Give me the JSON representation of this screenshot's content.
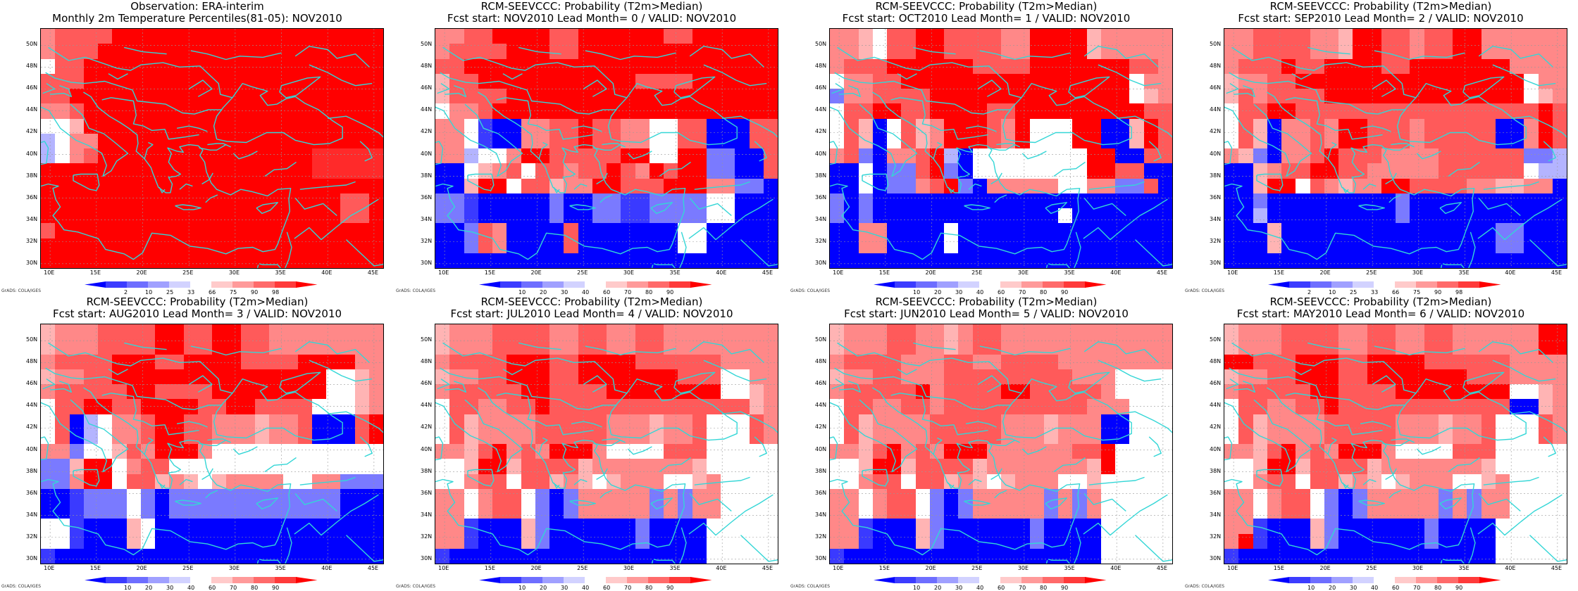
{
  "lat_labels": [
    "50N",
    "48N",
    "46N",
    "44N",
    "42N",
    "40N",
    "38N",
    "36N",
    "34N",
    "32N",
    "30N"
  ],
  "lon_labels": [
    "10E",
    "15E",
    "20E",
    "25E",
    "30E",
    "35E",
    "40E",
    "45E"
  ],
  "grads_label": "GrADS: COLA/IGES",
  "colors": {
    "coast": "#33d6d6",
    "grid": "#999999",
    "palette": [
      "#0000ff",
      "#3c3cff",
      "#6e6eff",
      "#a0a0ff",
      "#d2d2ff",
      "#ffffff",
      "#ffcaca",
      "#ff9a9a",
      "#ff6a6a",
      "#ff3a3a",
      "#ff0000"
    ]
  },
  "cmap": {
    "B": "#0000ff",
    "b": "#3a3aff",
    "c": "#7a7aff",
    "l": "#b4b4ff",
    "W": "#ffffff",
    "p": "#ffb4b4",
    "q": "#ff8888",
    "m": "#ff5a5a",
    "R": "#ff2a2a",
    "X": "#ff0000"
  },
  "panels": [
    {
      "title_line1": "Observation: ERA-interim",
      "title_line2": "Monthly 2m Temperature Percentiles(81-05): NOV2010",
      "colorbar_ticks": [
        "2",
        "10",
        "25",
        "33",
        "66",
        "75",
        "90",
        "98"
      ],
      "grid": [
        "qmmmmXXXXXXXXXXXXXXXXXXX",
        "qmmmXXXXXXXXXXXXXXXXXXXX",
        "WmmXXXXXXXXXXXXXXXXXXXXX",
        "mmmXXXXXXXXXXXXXXXXXXXXX",
        "mmXXXXXXXXXXXXXXXXXXXXXX",
        "qqmXXXXXXXXXXXXXXXXXXXXX",
        "WWpXXXXXXXXXXXXXXXXXXXXX",
        "lWqqXXXXXXXXXXXXXXXXXXXX",
        "lWqmXXXXXXXXXXXXXXXRRRRR",
        "XXXXXXXXXXXXXXXXXXXRRRRR",
        "XXXXXXXXXXXXXXXXXXXXXXXX",
        "XXXXXXXXXXXXXXXXXXXXXmmX",
        "XXXXXXXXXXXXXXXXXXXXXmmX",
        "mXXXXXXXXXXXXXXXXXXXXXXX",
        "XXXXXXXXXXXXXXXXXXXXXXXX",
        "XXXXXXXXXXXXXXXXXXXXXXXX"
      ]
    },
    {
      "title_line1": "RCM-SEEVCCC: Probability (T2m>Median)",
      "title_line2": "Fcst start: NOV2010   Lead Month= 0 / VALID: NOV2010",
      "colorbar_ticks": [
        "10",
        "20",
        "30",
        "40",
        "60",
        "70",
        "80",
        "90"
      ],
      "grid": [
        "qqmmXXXXmmXXXXXXmmXXXXXX",
        "qmmmmXXXmmXXXXXXXXXXXXXX",
        "mmXXXXXXXXXXXXXXXXXXXXXX",
        "pmmXXXXXXXXXXXmmmmXXXXXX",
        "pmmmmXXXXXXXXXXXXXXXXXXX",
        "WqqmXXXXXXXXXXXXXXXXXXXX",
        "qqWbBBqqmmXmmqqWWmmBBBmm",
        "qqWbBBqqmmXmmqqWWmmBBBmm",
        "qqlWWqXXmmmmmXXWWXXccBBm",
        "BBWpqmWmmqmmXmqXmXXccBBm",
        "BBpXXWmmpqqXXmmmXXXqqccB",
        "ccbBBBBBcBBccbbccccWWBBB",
        "ccbBBBBBcBBccbbccccWWBBB",
        "BBcmqBBBBmBBBBBBBWWBBBBB",
        "BBcmqBBBBmBBBBBBBWWBBBBB",
        "BBBBBBBBBBBBBBBBBBBBBBBB"
      ]
    },
    {
      "title_line1": "RCM-SEEVCCC: Probability (T2m>Median)",
      "title_line2": "Fcst start: OCT2010   Lead Month= 1 / VALID: NOV2010",
      "colorbar_ticks": [
        "10",
        "20",
        "30",
        "40",
        "60",
        "70",
        "80",
        "90"
      ],
      "grid": [
        "qqpWmmXXmmmmqqXXXXpqqqqq",
        "qqpWmmXXmmmmqqXXXXpqqqqq",
        "qmmmXXXXXXmmmmXXXXXXXmmq",
        "WqqmmXXXXXXXXXXXXXXXXWqq",
        "cqqmmmmXXXXXXXXXXXXXXWpq",
        "WmmXXmmXXXXmmXXXXXXXXXmm",
        "WmpBWmpqXXXmqXWWWXXBBpXm",
        "WmpBWmpqXXXmqXWWWXXBBpXm",
        "qmcBqqmXlBWWWWWWWWXXBBmm",
        "BBWBccmXcBWWWWWWWWXXmmBB",
        "BBWBccqmXcBqqqqqWWqqccmB",
        "cBcBBBBBBBBBBBBBBBBBBBBB",
        "cBcBBBBBBBBBBBBBWBBBBBBB",
        "BBqqBBBBWBBBBBBBBBBBBBBB",
        "BBqqBBBBWBBBBBBBBBBBBBBB",
        "BBBBBBBBBBBBBBBBBBBBBBBB"
      ]
    },
    {
      "title_line1": "RCM-SEEVCCC: Probability (T2m>Median)",
      "title_line2": "Fcst start: SEP2010   Lead Month= 2 / VALID: NOV2010",
      "colorbar_ticks": [
        "2",
        "10",
        "25",
        "33",
        "66",
        "75",
        "90",
        "98"
      ],
      "grid": [
        "qqmmmmqqpXXmmqmmXXqqqqqq",
        "qqmmmmqqpXXmmqmmXXqqqqqq",
        "qmmmXmmXXXXmmXXXXXXXqqqq",
        "pqqmmXXXXXXXXXXXXXXXXWqq",
        "pmqmmmmXXXXXXXXXXXXXXWpq",
        "WmmXXmmmmmmmmmmmmmmmmmXm",
        "WmpBqqmqXXmmmqmmmmmBBqXm",
        "WmpBqqmqXXmmmqmmmmmBBqXm",
        "qpcBqqmXmmmqqqqmmmmmmccl",
        "BBpqmmXXmmqqqqqmmmmmmWll",
        "BBpXXWmqpqqXXmmmmqqppqqB",
        "BBcBBBBBBBBBcBBBBBBBBBBB",
        "BBlBBBBBBBBBcBBBBBBBBBBB",
        "BBBpBBBBBBBBBBBBBBBccBBB",
        "BBBpBBBBBBBBBBBBBBBccBBB",
        "BBBBBBBBBBBBBBBBBBBBBBBB"
      ]
    },
    {
      "title_line1": "RCM-SEEVCCC: Probability (T2m>Median)",
      "title_line2": "Fcst start: AUG2010   Lead Month= 3 / VALID: NOV2010",
      "colorbar_ticks": [
        "10",
        "20",
        "30",
        "40",
        "60",
        "70",
        "80",
        "90"
      ],
      "grid": [
        "pqqqmmmmXXmmXXmmqqqqqqqq",
        "pqqqmmmmXXmmXXmmqqqqqqqq",
        "qmmmmXXXmmXXXXmmmmXXXXqq",
        "pqqmmXXXXXXXXXXXXXXXWWpq",
        "qmmmmmXXmmmmXXXXXXXXWWpq",
        "WmmXXmmXXXXmmXXmmmmWWWpq",
        "WmBlWqqmXXmmqqqpqqmBBBmX",
        "WmBlWqqmXXmmqqqpqqmBBBmX",
        "qqcWWpmqXXXqWWWWWWWWWWWW",
        "ccpXXWqmmWWWWWWWWWWWWWWW",
        "ccqXXWmmpqpWpqqqqWWqqccc",
        "BBbcccWcBccccccccccccBBB",
        "BBbcccWcBccccccccccccBBB",
        "WWbBBBpWBBBBBBBBBBBBBBBB",
        "WWbBBBpWBBBBBBBBBBBBBBBB",
        "bBBBBBBBBBBBBBBBBBBBBBBB"
      ]
    },
    {
      "title_line1": "RCM-SEEVCCC: Probability (T2m>Median)",
      "title_line2": "Fcst start: JUL2010   Lead Month= 4 / VALID: NOV2010",
      "colorbar_ticks": [
        "10",
        "20",
        "30",
        "40",
        "60",
        "70",
        "80",
        "90"
      ],
      "grid": [
        "pqqqmmmmqqmmqqmmqqqqqqqq",
        "pqqqmmmmqqmmqqmmqqqqqqqq",
        "qmmmmXXXmmXXXXmmmmmmqqqq",
        "pqqmmXXXmmXXXXXXXmmmWWqq",
        "qmmmmmXXmmmmXXXXXXXXWWpq",
        "WmmqqmmXmmmmmmmmmmmmmmpq",
        "WmpqqqqmmmmmqqqpqqmWWWmq",
        "WmpqqqqmmmmmqqqpqqmWWWmq",
        "qqpmXqmqXXXqWWWWmmmWWWWW",
        "WWpXXpmmmmpqqqqqqqpWWWWW",
        "WWqmmWmmpqpWpqqqWWpqWWWW",
        "qqWqmmWcBcqqqqqcqcqqWWWW",
        "qqWqmmWcBcqqqqqcqcqqWWWW",
        "qqbBBBpcBBBBBBcBBBBWWWWW",
        "qqbBBBpcBBBBBBcBBBBWWWWW",
        "bBBBBBBBBBBBBBBBBBBWWWWW"
      ]
    },
    {
      "title_line1": "RCM-SEEVCCC: Probability (T2m>Median)",
      "title_line2": "Fcst start: JUN2010   Lead Month= 5 / VALID: NOV2010",
      "colorbar_ticks": [
        "10",
        "20",
        "30",
        "40",
        "60",
        "70",
        "80",
        "90"
      ],
      "grid": [
        "pqqqmmqqpqmmqqqqqqqqqqqq",
        "pqqqmmqqpqmmqqqqqqqqqqqq",
        "qmmmmqqqmmqqmmmmqqqqqqqq",
        "pqqmmqqqmmmmmmmmmqqqWWWW",
        "qmmmmmXqmmmmXXmmmmmqWWWW",
        "WmmqqmmqmmmmmmmmmmqqqWWW",
        "WmpqqqqmmmmmqqqpqqqBBWWW",
        "WmpqqqqmmmmmqqqpqqqBBWWW",
        "qqpmXqmqXXXqqqqqqmmXWWWW",
        "WWpXXpmmmmpqqqqqqqpXWWWW",
        "WWqmmWmmpqpWpqqqWWpWWWWW",
        "qqWqmmWcBcqqqqqcqcqWWWWW",
        "qqWqmmWcBcqqqqqcqcqWWWWW",
        "qqbBBBpcBBBBBBcBBBBWWWWW",
        "qqbBBBpcBBBBBBcBBBBWWWWW",
        "bBBBBBBBBBBBBBBBBBBWWWWW"
      ]
    },
    {
      "title_line1": "RCM-SEEVCCC: Probability (T2m>Median)",
      "title_line2": "Fcst start: MAY2010   Lead Month= 6 / VALID: NOV2010",
      "colorbar_ticks": [
        "10",
        "20",
        "30",
        "40",
        "60",
        "70",
        "80",
        "90"
      ],
      "grid": [
        "pqqqmmmmqqmmqqmmqqqqqqXX",
        "pqqqmmmmqqmmqqmmqqqqqqXX",
        "XXmmmXXXmmXXXXmmmmmmqqqq",
        "pqqmmXXXmmXXXXXXXmmmqqqq",
        "qmmmmmXXmmmmXXXXXXXXWWpq",
        "WmmqqmmXmmmmmmmmmmmmBBpq",
        "WmpqqqqmmmmmqqqpqqmWWWmq",
        "WmpqqqqmmmmmqqqpqqmWWWmq",
        "qqpmXqmqXXXqWWWWmmmWWWWW",
        "WWpXXpmmmmpqqqqqqqpWWWWW",
        "WWqmmWmmpqpWpqqqWWpqWWWW",
        "qqWqmmWcBcqqqqqcqcqqWWWW",
        "qqWqmmWcBcqqqqqcqcqqWWWW",
        "qqbBBBpcBBBBBBcBBBBWWWWW",
        "qXbBBBpcBBBBBBcBBBBWWWWW",
        "bBBBBBBBBBBBBBBBBBBWWWWW"
      ]
    }
  ]
}
